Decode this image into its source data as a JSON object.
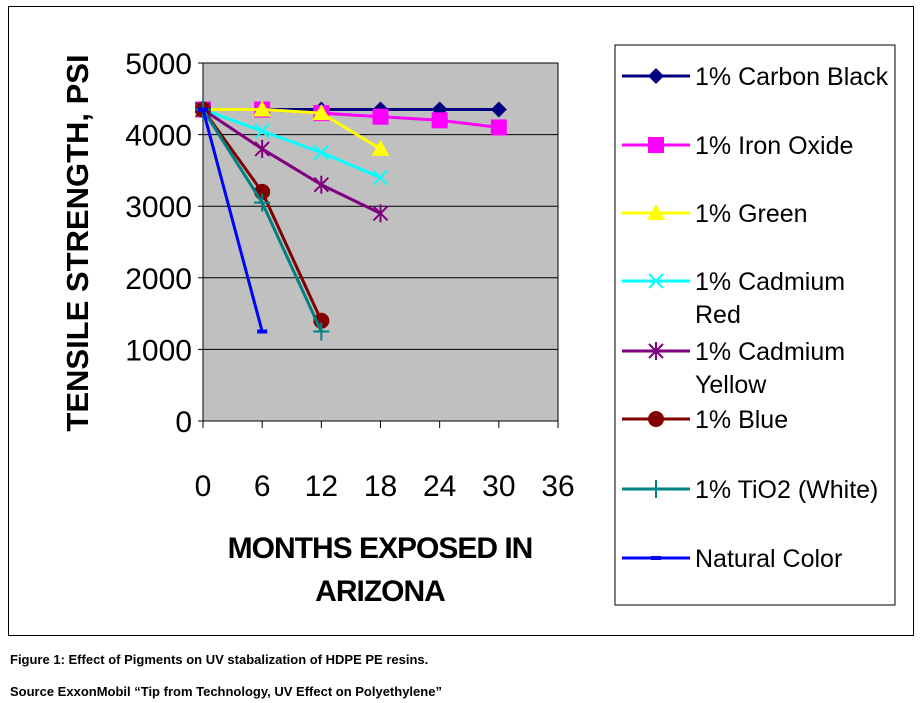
{
  "chart_data": {
    "type": "line",
    "xlabel": "MONTHS EXPOSED IN ARIZONA",
    "xlabel_lines": [
      "MONTHS EXPOSED IN",
      "ARIZONA"
    ],
    "ylabel": "TENSILE STRENGTH, PSI",
    "xlim": [
      0,
      36
    ],
    "ylim": [
      0,
      5000
    ],
    "x_ticks": [
      "0",
      "6",
      "12",
      "18",
      "24",
      "30",
      "36"
    ],
    "y_ticks": [
      "0",
      "1000",
      "2000",
      "3000",
      "4000",
      "5000"
    ],
    "grid": "horizontal",
    "plot_background": "#c0c0c0",
    "legend_position": "right",
    "series": [
      {
        "name": "1% Carbon Black",
        "name_lines": [
          "1% Carbon Black"
        ],
        "color": "#000080",
        "marker": "diamond",
        "x": [
          0,
          6,
          12,
          18,
          24,
          30
        ],
        "y": [
          4350,
          4350,
          4350,
          4350,
          4350,
          4350
        ]
      },
      {
        "name": "1% Iron Oxide",
        "name_lines": [
          "1% Iron Oxide"
        ],
        "color": "#ff00ff",
        "marker": "square",
        "x": [
          0,
          6,
          12,
          18,
          24,
          30
        ],
        "y": [
          4350,
          4350,
          4300,
          4250,
          4200,
          4100
        ]
      },
      {
        "name": "1% Green",
        "name_lines": [
          "1% Green"
        ],
        "color": "#ffff00",
        "marker": "triangle",
        "x": [
          0,
          6,
          12,
          18
        ],
        "y": [
          4350,
          4350,
          4300,
          3800
        ]
      },
      {
        "name": "1% Cadmium Red",
        "name_lines": [
          "1% Cadmium",
          "Red"
        ],
        "color": "#00ffff",
        "marker": "x",
        "x": [
          0,
          6,
          12,
          18
        ],
        "y": [
          4350,
          4050,
          3750,
          3400
        ]
      },
      {
        "name": "1% Cadmium Yellow",
        "name_lines": [
          "1% Cadmium",
          "Yellow"
        ],
        "color": "#800080",
        "marker": "asterisk",
        "x": [
          0,
          6,
          12,
          18
        ],
        "y": [
          4350,
          3800,
          3300,
          2900
        ]
      },
      {
        "name": "1% Blue",
        "name_lines": [
          "1% Blue"
        ],
        "color": "#800000",
        "marker": "circle",
        "x": [
          0,
          6,
          12
        ],
        "y": [
          4350,
          3200,
          1400
        ]
      },
      {
        "name": "1% TiO2 (White)",
        "name_lines": [
          "1% TiO2 (White)"
        ],
        "color": "#008080",
        "marker": "plus",
        "x": [
          0,
          6,
          12
        ],
        "y": [
          4350,
          3050,
          1250
        ]
      },
      {
        "name": "Natural Color",
        "name_lines": [
          "Natural Color"
        ],
        "color": "#0000ff",
        "marker": "dash",
        "x": [
          0,
          6
        ],
        "y": [
          4350,
          1250
        ]
      }
    ]
  },
  "caption": {
    "line1": "Figure 1: Effect of Pigments on UV stabalization of HDPE PE resins.",
    "line2": "Source ExxonMobil “Tip from Technology, UV Effect on Polyethylene”"
  }
}
